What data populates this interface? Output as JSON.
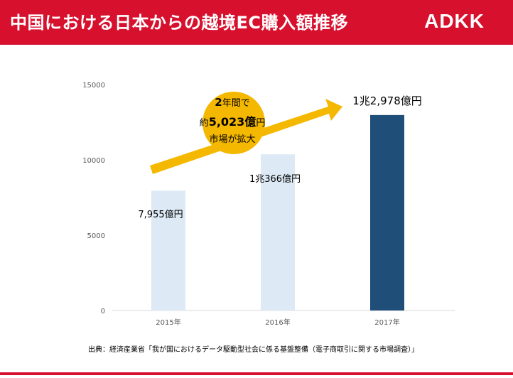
{
  "header": {
    "title": "中国における日本からの越境EC購入額推移",
    "logo": "ADKK",
    "background": "#d7102e"
  },
  "chart_data": {
    "type": "bar",
    "categories": [
      "2015年",
      "2016年",
      "2017年"
    ],
    "values": [
      7955,
      10366,
      12978
    ],
    "bar_colors": [
      "#dde9f5",
      "#dde9f5",
      "#1f4e79"
    ],
    "ylim": [
      0,
      15000
    ],
    "yticks": [
      0,
      5000,
      10000,
      15000
    ],
    "ytick_labels": [
      "0",
      "5000",
      "10000",
      "15000"
    ],
    "grid": false,
    "data_labels": [
      "7,955億円",
      "1兆366億円",
      "1兆2,978億円"
    ],
    "annotation": {
      "line1_bold": "2",
      "line1_rest": "年間で",
      "line2_prefix": "約",
      "line2_bold": "5,023億",
      "line2_suffix": "円",
      "line3": "市場が拡大",
      "arrow_color": "#f5b800",
      "circle_color": "#f5b800"
    }
  },
  "source": "出典：経済産業省「我が国におけるデータ駆動型社会に係る基盤整備（電子商取引に関する市場調査）」"
}
